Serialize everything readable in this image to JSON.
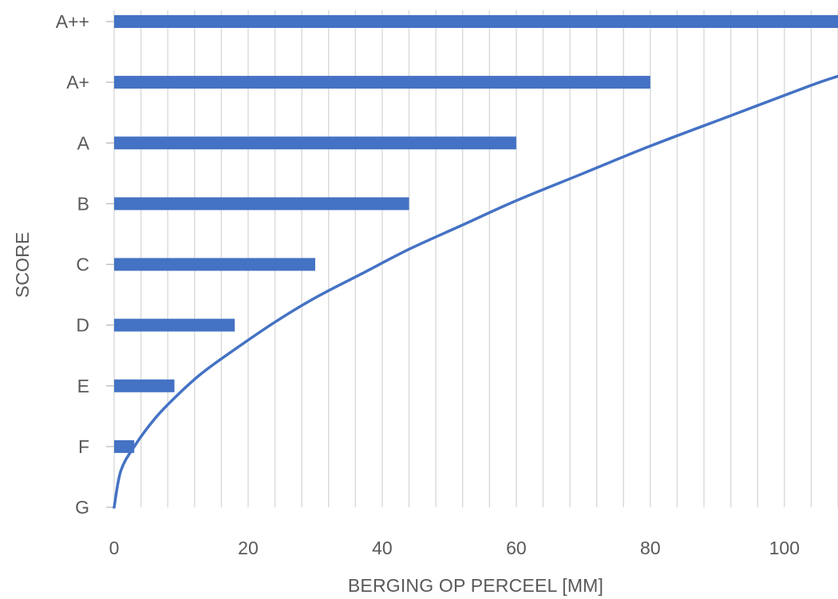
{
  "chart_data": {
    "type": "bar",
    "orientation": "horizontal",
    "categories": [
      "G",
      "F",
      "E",
      "D",
      "C",
      "B",
      "A",
      "A+",
      "A++"
    ],
    "values": [
      0,
      3,
      9,
      18,
      30,
      44,
      60,
      80,
      108
    ],
    "curve": {
      "type": "line",
      "points": [
        [
          0,
          0
        ],
        [
          1,
          0.6
        ],
        [
          3,
          1
        ],
        [
          6,
          1.45
        ],
        [
          9,
          1.8
        ],
        [
          13,
          2.2
        ],
        [
          18,
          2.6
        ],
        [
          24,
          3.05
        ],
        [
          30,
          3.45
        ],
        [
          37,
          3.85
        ],
        [
          44,
          4.25
        ],
        [
          52,
          4.65
        ],
        [
          60,
          5.05
        ],
        [
          70,
          5.5
        ],
        [
          80,
          5.95
        ],
        [
          92,
          6.45
        ],
        [
          104,
          6.95
        ],
        [
          108,
          7.1
        ]
      ]
    },
    "xlabel": "BERGING OP PERCEEL [MM]",
    "ylabel": "SCORE",
    "xlim": [
      0,
      108
    ],
    "xticks": [
      "0",
      "20",
      "40",
      "60",
      "80",
      "100"
    ],
    "xtick_values": [
      0,
      20,
      40,
      60,
      80,
      100
    ],
    "minor_grid_step": 4,
    "grid": true,
    "colors": {
      "bar": "#4472C4",
      "curve": "#4472C4",
      "grid": "#D9D9D9",
      "text": "#595959"
    }
  }
}
